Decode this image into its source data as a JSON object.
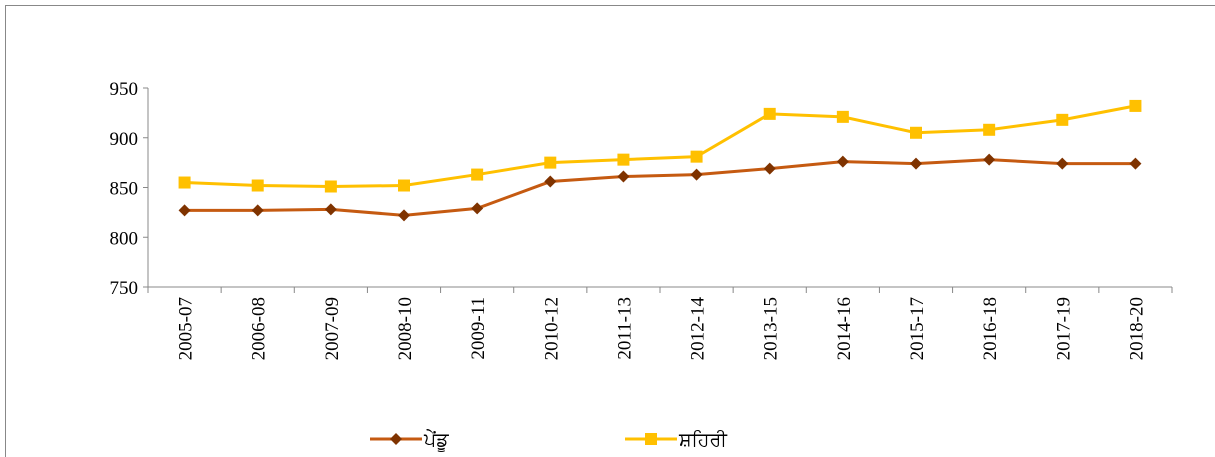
{
  "chart_data": {
    "type": "line",
    "categories": [
      "2005-07",
      "2006-08",
      "2007-09",
      "2008-10",
      "2009-11",
      "2010-12",
      "2011-13",
      "2012-14",
      "2013-15",
      "2014-16",
      "2015-17",
      "2016-18",
      "2017-19",
      "2018-20"
    ],
    "series": [
      {
        "name": "ਪੇਂਡੂ",
        "color": "#c55a11",
        "marker_color": "#7f3300",
        "marker": "diamond",
        "values": [
          827,
          827,
          828,
          822,
          829,
          856,
          861,
          863,
          869,
          876,
          874,
          878,
          874,
          874
        ]
      },
      {
        "name": "ਸ਼ਹਿਰੀ",
        "color": "#ffc000",
        "marker_color": "#ffc000",
        "marker": "square",
        "values": [
          855,
          852,
          851,
          852,
          863,
          875,
          878,
          881,
          924,
          921,
          905,
          908,
          918,
          932
        ]
      }
    ],
    "ylim": [
      750,
      950
    ],
    "yticks": [
      750,
      800,
      850,
      900,
      950
    ],
    "grid": false,
    "legend": "bottom"
  }
}
